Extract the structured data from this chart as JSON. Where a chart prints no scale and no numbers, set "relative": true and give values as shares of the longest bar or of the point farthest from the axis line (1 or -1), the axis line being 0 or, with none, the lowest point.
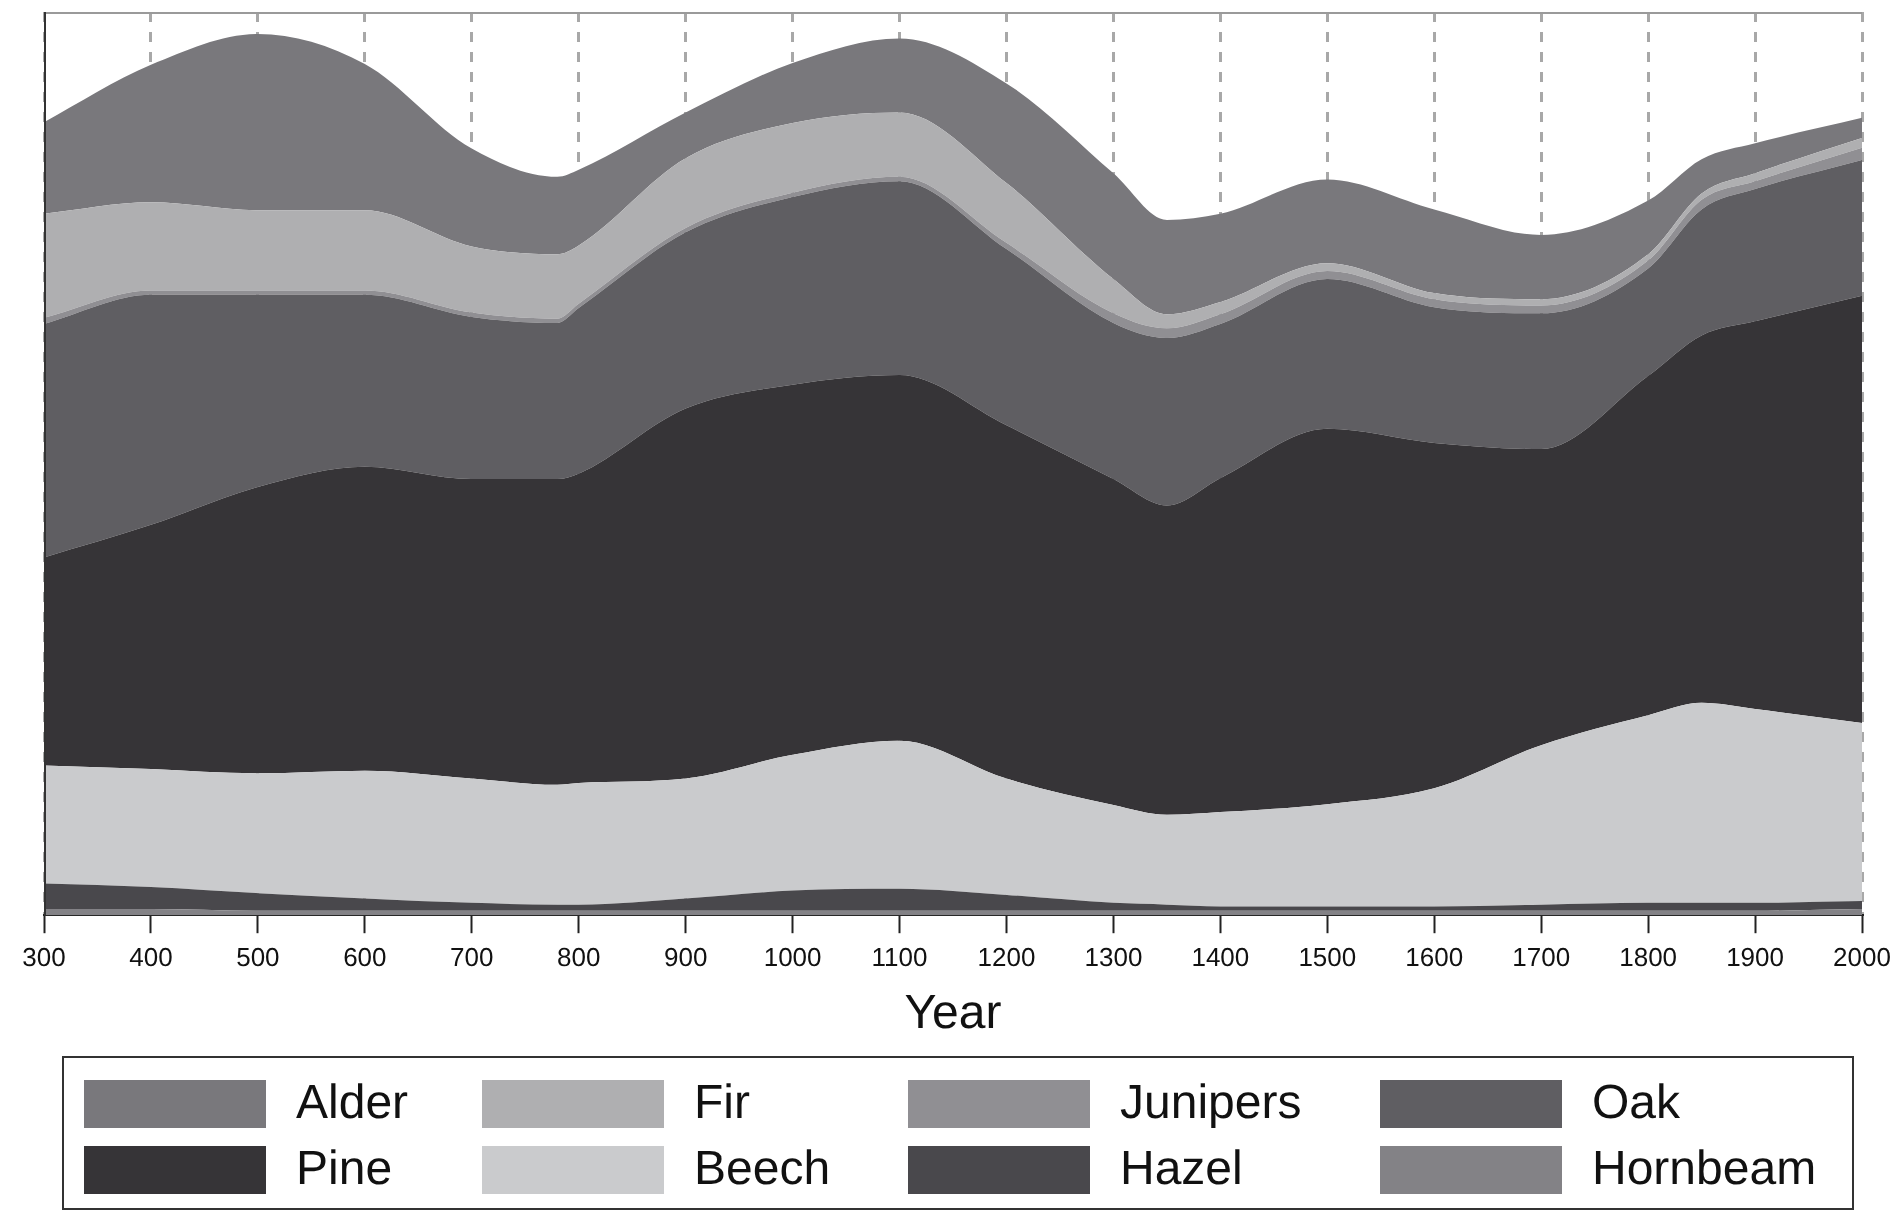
{
  "chart_data": {
    "type": "area",
    "stacked": true,
    "relative": true,
    "xlabel": "Year",
    "legend": "bottom",
    "grid": "x",
    "tick_labels": "x",
    "x": [
      300,
      400,
      500,
      600,
      700,
      780,
      800,
      900,
      1000,
      1100,
      1200,
      1300,
      1350,
      1400,
      1500,
      1600,
      1700,
      1800,
      1850,
      1900,
      2000
    ],
    "xlim": [
      300,
      2000
    ],
    "xticks": [
      300,
      400,
      500,
      600,
      700,
      800,
      900,
      1000,
      1100,
      1200,
      1300,
      1400,
      1500,
      1600,
      1700,
      1800,
      1900,
      2000
    ],
    "series": [
      {
        "name": "Hornbeam",
        "color": "#838286",
        "values": [
          0.007,
          0.007,
          0.005,
          0.005,
          0.005,
          0.005,
          0.005,
          0.005,
          0.005,
          0.005,
          0.005,
          0.005,
          0.005,
          0.005,
          0.005,
          0.005,
          0.005,
          0.005,
          0.005,
          0.005,
          0.007
        ]
      },
      {
        "name": "Hazel",
        "color": "#49484c",
        "values": [
          0.029,
          0.025,
          0.02,
          0.014,
          0.009,
          0.007,
          0.007,
          0.014,
          0.023,
          0.025,
          0.018,
          0.009,
          0.007,
          0.005,
          0.005,
          0.005,
          0.007,
          0.009,
          0.009,
          0.009,
          0.009
        ]
      },
      {
        "name": "Beech",
        "color": "#cacbcd",
        "values": [
          0.134,
          0.134,
          0.136,
          0.145,
          0.141,
          0.136,
          0.138,
          0.136,
          0.154,
          0.168,
          0.132,
          0.111,
          0.102,
          0.107,
          0.116,
          0.134,
          0.181,
          0.213,
          0.227,
          0.22,
          0.202
        ]
      },
      {
        "name": "Pine",
        "color": "#363437",
        "values": [
          0.236,
          0.277,
          0.325,
          0.345,
          0.34,
          0.347,
          0.351,
          0.42,
          0.42,
          0.415,
          0.401,
          0.37,
          0.351,
          0.379,
          0.426,
          0.392,
          0.336,
          0.385,
          0.417,
          0.44,
          0.485
        ]
      },
      {
        "name": "Oak",
        "color": "#5f5e62",
        "values": [
          0.265,
          0.261,
          0.218,
          0.195,
          0.184,
          0.177,
          0.188,
          0.2,
          0.213,
          0.22,
          0.2,
          0.177,
          0.19,
          0.175,
          0.17,
          0.154,
          0.154,
          0.122,
          0.143,
          0.15,
          0.154
        ]
      },
      {
        "name": "Junipers",
        "color": "#908f93",
        "values": [
          0.007,
          0.005,
          0.005,
          0.005,
          0.005,
          0.005,
          0.005,
          0.005,
          0.005,
          0.005,
          0.007,
          0.011,
          0.011,
          0.011,
          0.009,
          0.009,
          0.009,
          0.009,
          0.011,
          0.009,
          0.014
        ]
      },
      {
        "name": "Fir",
        "color": "#afafb1",
        "values": [
          0.118,
          0.1,
          0.091,
          0.091,
          0.075,
          0.073,
          0.066,
          0.079,
          0.079,
          0.073,
          0.068,
          0.039,
          0.016,
          0.014,
          0.009,
          0.007,
          0.007,
          0.007,
          0.007,
          0.009,
          0.011
        ]
      },
      {
        "name": "Alder",
        "color": "#79787c",
        "values": [
          0.104,
          0.156,
          0.2,
          0.166,
          0.111,
          0.088,
          0.086,
          0.052,
          0.068,
          0.084,
          0.113,
          0.12,
          0.107,
          0.1,
          0.095,
          0.095,
          0.073,
          0.061,
          0.039,
          0.034,
          0.023
        ]
      }
    ]
  }
}
